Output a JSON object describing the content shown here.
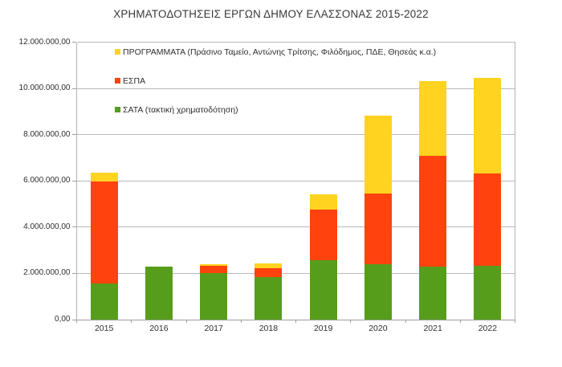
{
  "chart_data": {
    "type": "bar",
    "stacked": true,
    "title": "ΧΡΗΜΑΤΟΔΟΤΗΣΕΙΣ ΕΡΓΩΝ ΔΗΜΟΥ ΕΛΑΣΣΟΝΑΣ 2015-2022",
    "categories": [
      "2015",
      "2016",
      "2017",
      "2018",
      "2019",
      "2020",
      "2021",
      "2022"
    ],
    "series": [
      {
        "name": "ΣΑΤΑ (τακτική χρηματοδότηση)",
        "color": "#579D1C",
        "values": [
          1550000,
          2280000,
          2030000,
          1850000,
          2560000,
          2400000,
          2300000,
          2310000
        ]
      },
      {
        "name": "ΕΣΠΑ",
        "color": "#FF420E",
        "values": [
          4410000,
          0,
          280000,
          380000,
          2210000,
          3070000,
          4770000,
          4010000
        ]
      },
      {
        "name": "ΠΡΟΓΡΑΜΜΑΤΑ (Πράσινο Ταμείο, Αντώνης Τρίτσης, Φιλόδημος, ΠΔΕ, Θησεάς κ.α.)",
        "color": "#FFD320",
        "values": [
          390000,
          0,
          100000,
          210000,
          650000,
          3340000,
          3240000,
          4150000
        ]
      }
    ],
    "xlabel": "",
    "ylabel": "",
    "ylim": [
      0,
      12000000
    ],
    "y_tick_step": 2000000,
    "y_tick_labels": [
      "0,00",
      "2.000.000,00",
      "4.000.000,00",
      "6.000.000,00",
      "8.000.000,00",
      "10.000.000,00",
      "12.000.000,00"
    ],
    "grid": "horizontal",
    "legend_position": "inside-top-left",
    "legend_order": [
      "ΠΡΟΓΡΑΜΜΑΤΑ (Πράσινο Ταμείο, Αντώνης Τρίτσης, Φιλόδημος, ΠΔΕ, Θησεάς κ.α.)",
      "ΕΣΠΑ",
      "ΣΑΤΑ (τακτική χρηματοδότηση)"
    ]
  },
  "colors": {
    "background": "#ffffff",
    "grid": "#b9b9b9",
    "axis": "#9e9e9e",
    "text": "#2e2e2e"
  }
}
